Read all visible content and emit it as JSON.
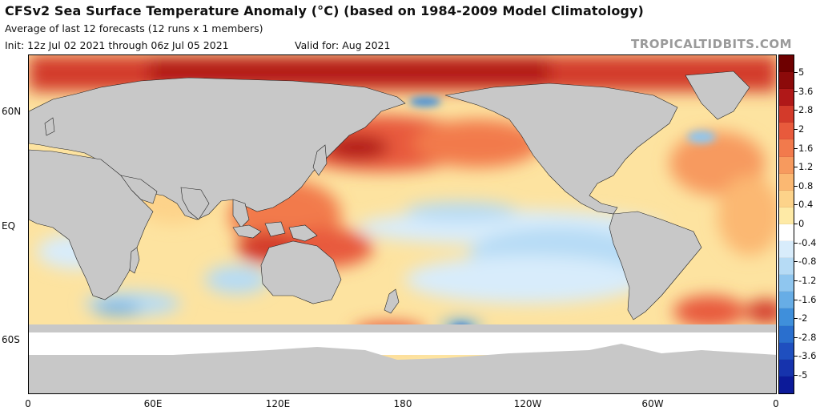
{
  "header": {
    "title": "CFSv2 Sea Surface Temperature Anomaly (°C) (based on 1984-2009 Model Climatology)",
    "subtitle": "Average of last 12 forecasts (12 runs x 1 members)",
    "init": "Init: 12z Jul 02 2021 through 06z Jul 05 2021",
    "valid": "Valid for: Aug 2021"
  },
  "watermark": "TROPICALTIDBITS.COM",
  "map": {
    "projection": "equirectangular",
    "y_axis_labels": [
      {
        "text": "60N",
        "lat": 60
      },
      {
        "text": "EQ",
        "lat": 0
      },
      {
        "text": "60S",
        "lat": -60
      }
    ],
    "x_axis_labels": [
      {
        "text": "0",
        "lon": 0
      },
      {
        "text": "60E",
        "lon": 60
      },
      {
        "text": "120E",
        "lon": 120
      },
      {
        "text": "180",
        "lon": 180
      },
      {
        "text": "120W",
        "lon": 240
      },
      {
        "text": "60W",
        "lon": 300
      },
      {
        "text": "0",
        "lon": 360
      }
    ],
    "land_color": "#c8c8c8",
    "sea_ice_color": "#ffffff"
  },
  "colorbar": {
    "unit": "°C",
    "colors": [
      "#6e0000",
      "#8c0a0a",
      "#b01818",
      "#d33a2a",
      "#e85a3c",
      "#f27a4c",
      "#f79a5e",
      "#fbb872",
      "#fdd38a",
      "#feeaa6",
      "#ffffff",
      "#d8ecfb",
      "#b6dbf5",
      "#8fc6ef",
      "#67ade6",
      "#3f8fdb",
      "#2a6fce",
      "#1f4fbf",
      "#1633ad",
      "#0c1a99"
    ],
    "labels": [
      "5",
      "3.6",
      "2.8",
      "2",
      "1.6",
      "1.2",
      "0.8",
      "0.4",
      "0",
      "-0.4",
      "-0.8",
      "-1.2",
      "-1.6",
      "-2",
      "-2.8",
      "-3.6",
      "-5"
    ],
    "range": [
      -5,
      5
    ]
  }
}
